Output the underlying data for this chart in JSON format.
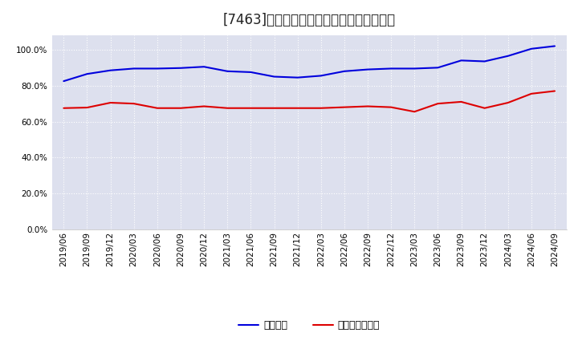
{
  "title": "[7463]　固定比率、固定長期適合率の推移",
  "x_labels": [
    "2019/06",
    "2019/09",
    "2019/12",
    "2020/03",
    "2020/06",
    "2020/09",
    "2020/12",
    "2021/03",
    "2021/06",
    "2021/09",
    "2021/12",
    "2022/03",
    "2022/06",
    "2022/09",
    "2022/12",
    "2023/03",
    "2023/06",
    "2023/09",
    "2023/12",
    "2024/03",
    "2024/06",
    "2024/09"
  ],
  "fixed_ratio": [
    82.5,
    86.5,
    88.5,
    89.5,
    89.5,
    89.8,
    90.5,
    88.0,
    87.5,
    85.0,
    84.5,
    85.5,
    88.0,
    89.0,
    89.5,
    89.5,
    90.0,
    94.0,
    93.5,
    96.5,
    100.5,
    102.0
  ],
  "long_term_ratio": [
    67.5,
    67.8,
    70.5,
    70.0,
    67.5,
    67.5,
    68.5,
    67.5,
    67.5,
    67.5,
    67.5,
    67.5,
    68.0,
    68.5,
    68.0,
    65.5,
    70.0,
    71.0,
    67.5,
    70.5,
    75.5,
    77.0
  ],
  "blue_color": "#0000dd",
  "red_color": "#dd0000",
  "bg_color": "#ffffff",
  "plot_bg_color": "#dde0ee",
  "grid_color": "#ffffff",
  "ylim": [
    0,
    108
  ],
  "yticks": [
    0,
    20,
    40,
    60,
    80,
    100
  ],
  "legend_label_blue": "固定比率",
  "legend_label_red": "固定長期適合率",
  "title_fontsize": 12,
  "tick_fontsize": 7.5,
  "legend_fontsize": 9
}
